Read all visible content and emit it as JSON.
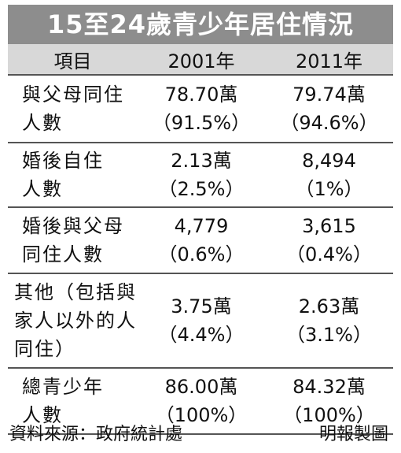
{
  "title": "15至24歲青少年居住情況",
  "headers": [
    "項目",
    "2001年",
    "2011年"
  ],
  "rows": [
    {
      "label": [
        "與父母同住",
        "人數"
      ],
      "y2001": [
        "78.70萬",
        "（91.5%）"
      ],
      "y2011": [
        "79.74萬",
        "（94.6%）"
      ]
    },
    {
      "label": [
        "婚後自住",
        "人數"
      ],
      "y2001": [
        "2.13萬",
        "（2.5%）"
      ],
      "y2011": [
        "8,494",
        "（1%）"
      ]
    },
    {
      "label": [
        "婚後與父母",
        "同住人數"
      ],
      "y2001": [
        "4,779",
        "（0.6%）"
      ],
      "y2011": [
        "3,615",
        "（0.4%）"
      ]
    },
    {
      "label": [
        "其他（包括與",
        "家人以外的人",
        "同住）"
      ],
      "y2001": [
        "3.75萬",
        "（4.4%）"
      ],
      "y2011": [
        "2.63萬",
        "（3.1%）"
      ]
    },
    {
      "label": [
        "總青少年",
        "人數"
      ],
      "y2001": [
        "86.00萬",
        "（100%）"
      ],
      "y2011": [
        "84.32萬",
        "（100%）"
      ]
    }
  ],
  "footer": {
    "source": "資料來源：政府統計處",
    "credit": "明報製圖"
  }
}
